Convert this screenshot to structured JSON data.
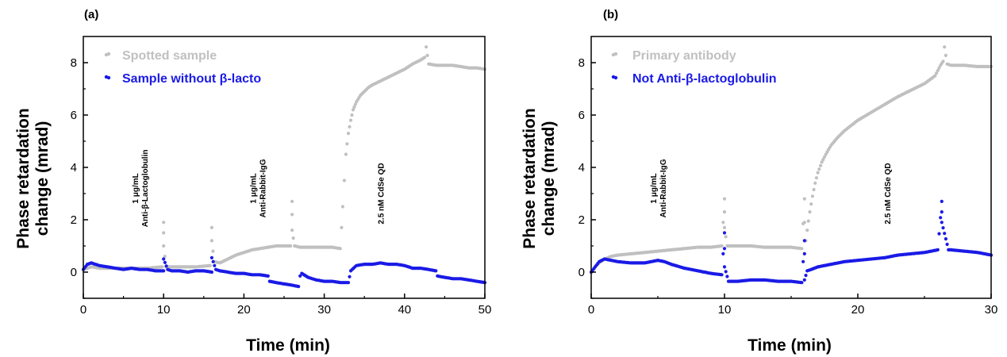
{
  "chart_data": [
    {
      "type": "scatter",
      "panel_label": "(a)",
      "xlabel": "Time (min)",
      "ylabel": [
        "Phase retardation",
        "change (mrad)"
      ],
      "xlim": [
        0,
        50
      ],
      "ylim": [
        -1,
        9
      ],
      "xticks": [
        0,
        10,
        20,
        30,
        40,
        50
      ],
      "yticks": [
        0,
        2,
        4,
        6,
        8
      ],
      "legend_position": "top-left",
      "annotations": [
        {
          "lines": [
            "1 μg/mL",
            "Anti-β-Lactoglobulin"
          ],
          "x": 7.0,
          "y": 3.2
        },
        {
          "lines": [
            "1 μg/mL",
            "Anti-Rabbit-IgG"
          ],
          "x": 21.7,
          "y": 3.2
        },
        {
          "lines": [
            "2.5 nM CdSe QD"
          ],
          "x": 37.0,
          "y": 3.0
        }
      ],
      "series": [
        {
          "name": "Spotted sample",
          "color": "#c0c0c0",
          "x": [
            0,
            1,
            2,
            4,
            6,
            8,
            9.8,
            10,
            10,
            10,
            10.3,
            12,
            14,
            15.8,
            16,
            16,
            16.3,
            17,
            18,
            19,
            20,
            21,
            22,
            23,
            24,
            25,
            25.8,
            26,
            26,
            26,
            26.3,
            27,
            28,
            29,
            30,
            31,
            32,
            32.3,
            32.5,
            32.7,
            33,
            33.3,
            33.6,
            34,
            34.5,
            35,
            35.5,
            36,
            37,
            38,
            39,
            40,
            41,
            42,
            42.5,
            42.7,
            43,
            44,
            45,
            46,
            47,
            48,
            49,
            50
          ],
          "y": [
            0.1,
            0.2,
            0.15,
            0.15,
            0.15,
            0.15,
            0.2,
            1.9,
            1.5,
            1.0,
            0.2,
            0.2,
            0.2,
            0.25,
            1.7,
            1.2,
            0.4,
            0.35,
            0.5,
            0.65,
            0.75,
            0.85,
            0.9,
            0.95,
            1.0,
            1.0,
            1.0,
            2.7,
            2.2,
            1.6,
            1.0,
            0.95,
            0.95,
            0.95,
            0.95,
            0.95,
            0.9,
            2.5,
            3.5,
            4.5,
            5.3,
            5.8,
            6.2,
            6.5,
            6.75,
            6.9,
            7.05,
            7.15,
            7.3,
            7.45,
            7.6,
            7.75,
            7.95,
            8.1,
            8.2,
            8.6,
            7.95,
            7.9,
            7.9,
            7.9,
            7.85,
            7.8,
            7.8,
            7.75
          ]
        },
        {
          "name": "Sample without β-lacto",
          "color": "#1a1ae6",
          "x": [
            0,
            0.5,
            1,
            2,
            3,
            4,
            5,
            6,
            7,
            8,
            9,
            10,
            10,
            10.5,
            11,
            12,
            13,
            14,
            15,
            16,
            16,
            16.5,
            17,
            18,
            19,
            20,
            21,
            22,
            23,
            23.2,
            24,
            25,
            26,
            26.8,
            27,
            27.2,
            28,
            29,
            30,
            31,
            32,
            33,
            33.3,
            34,
            35,
            36,
            37,
            38,
            39,
            40,
            41,
            42,
            43,
            43.9,
            44.1,
            45,
            46,
            47,
            48,
            49,
            50
          ],
          "y": [
            0.1,
            0.3,
            0.35,
            0.25,
            0.2,
            0.15,
            0.1,
            0.15,
            0.1,
            0.1,
            0.05,
            0.05,
            0.5,
            0.1,
            0.05,
            0.05,
            0.0,
            0.05,
            0.05,
            0.0,
            0.55,
            0.1,
            0.05,
            0.0,
            -0.05,
            -0.05,
            -0.1,
            -0.1,
            -0.15,
            -0.35,
            -0.4,
            -0.45,
            -0.5,
            -0.55,
            -0.15,
            -0.05,
            -0.2,
            -0.3,
            -0.35,
            -0.35,
            -0.4,
            -0.4,
            0.05,
            0.25,
            0.3,
            0.3,
            0.35,
            0.3,
            0.3,
            0.25,
            0.15,
            0.15,
            0.1,
            0.05,
            -0.15,
            -0.2,
            -0.25,
            -0.25,
            -0.3,
            -0.35,
            -0.4
          ]
        }
      ]
    },
    {
      "type": "scatter",
      "panel_label": "(b)",
      "xlabel": "Time (min)",
      "ylabel": [
        "Phase retardation",
        "change (mrad)"
      ],
      "xlim": [
        0,
        30
      ],
      "ylim": [
        -1,
        9
      ],
      "xticks": [
        0,
        10,
        20,
        30
      ],
      "yticks": [
        0,
        2,
        4,
        6,
        8
      ],
      "legend_position": "top-left",
      "annotations": [
        {
          "lines": [
            "1 μg/mL",
            "Anti-Rabbit-IgG"
          ],
          "x": 5.0,
          "y": 3.2
        },
        {
          "lines": [
            "2.5 nM CdSe QD"
          ],
          "x": 22.2,
          "y": 3.0
        }
      ],
      "series": [
        {
          "name": "Primary antibody",
          "color": "#c0c0c0",
          "x": [
            0,
            0.3,
            0.6,
            1,
            1.5,
            2,
            3,
            4,
            5,
            6,
            7,
            8,
            9,
            9.8,
            10,
            10,
            10,
            10.2,
            11,
            12,
            13,
            14,
            15,
            15.8,
            16,
            16,
            16.1,
            16.2,
            16.4,
            16.6,
            16.8,
            17,
            17.3,
            17.6,
            18,
            18.5,
            19,
            20,
            21,
            22,
            23,
            24,
            25,
            25.8,
            26.2,
            26.4,
            26.5,
            26.7,
            27,
            28,
            29,
            30
          ],
          "y": [
            0.0,
            0.2,
            0.35,
            0.5,
            0.6,
            0.65,
            0.7,
            0.75,
            0.8,
            0.85,
            0.9,
            0.95,
            0.95,
            1.0,
            2.8,
            2.3,
            1.7,
            1.0,
            1.0,
            1.0,
            0.95,
            0.95,
            0.95,
            0.9,
            2.8,
            1.9,
            1.2,
            1.6,
            2.3,
            2.9,
            3.4,
            3.8,
            4.2,
            4.5,
            4.85,
            5.15,
            5.4,
            5.8,
            6.1,
            6.4,
            6.7,
            6.95,
            7.2,
            7.5,
            7.9,
            8.05,
            8.6,
            7.95,
            7.9,
            7.9,
            7.85,
            7.85
          ]
        },
        {
          "name": "Not Anti-β-lactoglobulin",
          "color": "#1a1ae6",
          "x": [
            0,
            0.3,
            0.6,
            1,
            1.5,
            2,
            3,
            4,
            5,
            5.5,
            6,
            7,
            8,
            9,
            9.8,
            10,
            10,
            10,
            10.3,
            11,
            12,
            13,
            14,
            15,
            15.8,
            16,
            16,
            16,
            16.2,
            16.5,
            17,
            18,
            19,
            20,
            21,
            22,
            23,
            24,
            25,
            26,
            26.3,
            26.3,
            26.3,
            26.8,
            27,
            28,
            29,
            30
          ],
          "y": [
            0.0,
            0.2,
            0.4,
            0.5,
            0.45,
            0.4,
            0.35,
            0.35,
            0.45,
            0.4,
            0.3,
            0.15,
            0.05,
            -0.05,
            -0.1,
            1.5,
            0.9,
            0.2,
            -0.35,
            -0.35,
            -0.3,
            -0.3,
            -0.35,
            -0.35,
            -0.4,
            1.2,
            0.7,
            -0.3,
            0.05,
            0.1,
            0.2,
            0.3,
            0.4,
            0.45,
            0.5,
            0.55,
            0.65,
            0.7,
            0.75,
            0.85,
            2.7,
            2.3,
            1.9,
            0.85,
            0.85,
            0.8,
            0.75,
            0.65
          ]
        }
      ]
    }
  ]
}
